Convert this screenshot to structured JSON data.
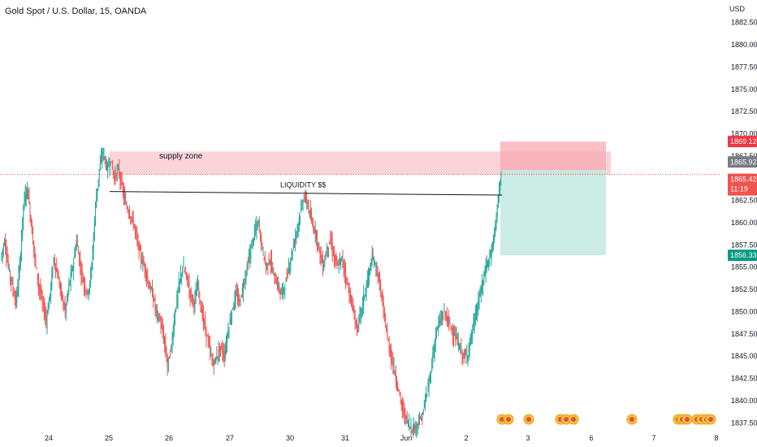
{
  "header": {
    "symbol_title": "Gold Spot / U.S. Dollar, 15, OANDA",
    "currency": "USD"
  },
  "chart_data": {
    "type": "candlestick",
    "y_axis": {
      "range": [
        1836.8,
        1883.2
      ],
      "ticks": [
        "1882.500",
        "1880.000",
        "1877.500",
        "1875.000",
        "1872.500",
        "1870.000",
        "1867.500",
        "1865.000",
        "1862.500",
        "1860.000",
        "1857.500",
        "1855.000",
        "1852.500",
        "1850.000",
        "1847.500",
        "1845.000",
        "1842.500",
        "1840.000",
        "1837.500"
      ]
    },
    "x_axis": {
      "labels": [
        "24",
        "25",
        "26",
        "27",
        "30",
        "31",
        "Jun",
        "2",
        "3",
        "6",
        "7",
        "8"
      ]
    },
    "price_series": [
      1856,
      1858,
      1855,
      1853,
      1851,
      1855,
      1862,
      1864,
      1860,
      1856,
      1853,
      1851,
      1849,
      1852,
      1856,
      1854,
      1852,
      1850,
      1853,
      1855,
      1858,
      1855,
      1853,
      1852,
      1855,
      1862,
      1866,
      1868,
      1866,
      1867,
      1865,
      1866,
      1864,
      1862,
      1861,
      1860,
      1858,
      1856,
      1855,
      1853,
      1852,
      1850,
      1849,
      1847,
      1844,
      1846,
      1850,
      1853,
      1855,
      1854,
      1852,
      1851,
      1853,
      1850,
      1848,
      1846,
      1844,
      1845,
      1846,
      1845,
      1848,
      1850,
      1852,
      1851,
      1853,
      1855,
      1857,
      1859,
      1860,
      1857,
      1855,
      1856,
      1854,
      1853,
      1852,
      1853,
      1855,
      1857,
      1859,
      1861,
      1863,
      1862,
      1860,
      1859,
      1857,
      1855,
      1857,
      1858,
      1856,
      1855,
      1856,
      1854,
      1852,
      1850,
      1848,
      1850,
      1852,
      1854,
      1856,
      1855,
      1853,
      1850,
      1847,
      1845,
      1843,
      1841,
      1839,
      1838,
      1837,
      1836.8,
      1837.5,
      1838,
      1840,
      1842,
      1845,
      1848,
      1849,
      1850,
      1849,
      1848,
      1847,
      1846,
      1845,
      1845,
      1847,
      1849,
      1851,
      1853,
      1855,
      1856,
      1858,
      1862,
      1865
    ],
    "supply_zone_label": "supply zone",
    "liquidity_label": "LIQUIDITY $$",
    "price_labels": {
      "target_high": "1869.120",
      "entry": "1865.923",
      "current_price": "1865.420",
      "countdown": "11:19",
      "stop_target": "1856.333"
    },
    "colors": {
      "up": "#26a69a",
      "down": "#ef5350",
      "supply_zone": "#f8c6cc",
      "stop_zone": "#f8a5ad",
      "target_zone": "#bfe7e0",
      "current_line": "#ef5350",
      "entry_label": "#787b86",
      "target_label": "#089981",
      "high_label": "#f23645"
    },
    "event_markers_count": 14
  }
}
